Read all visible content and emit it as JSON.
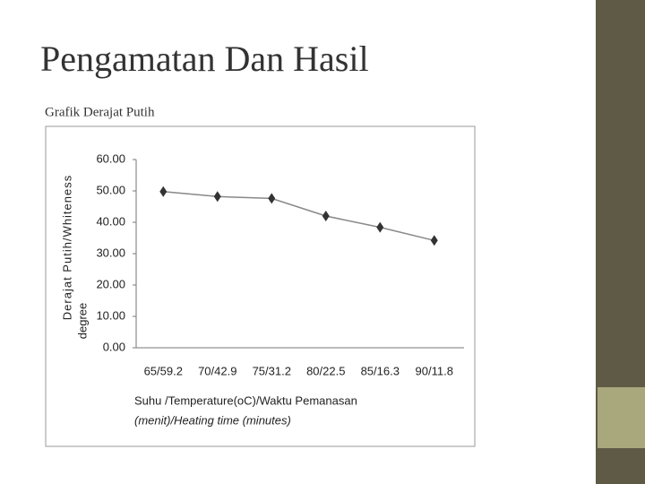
{
  "slide": {
    "title": "Pengamatan Dan Hasil",
    "subtitle": "Grafik Derajat Putih"
  },
  "chart_data": {
    "type": "line",
    "y_label": [
      "Derajat Putih/Whiteness",
      "degree"
    ],
    "x_label": [
      "Suhu /Temperature(oC)/Waktu Pemanasan",
      "(menit)/Heating time (minutes)"
    ],
    "categories": [
      "65/59.2",
      "70/42.9",
      "75/31.2",
      "80/22.5",
      "85/16.3",
      "90/11.8"
    ],
    "values": [
      49.8,
      48.2,
      47.6,
      42.0,
      38.4,
      34.2
    ],
    "color": "#333333",
    "ylim": [
      0,
      60
    ],
    "yticks": [
      {
        "value": 0,
        "label": "0.00"
      },
      {
        "value": 10,
        "label": "10.00"
      },
      {
        "value": 20,
        "label": "20.00"
      },
      {
        "value": 30,
        "label": "30.00"
      },
      {
        "value": 40,
        "label": "40.00"
      },
      {
        "value": 50,
        "label": "50.00"
      },
      {
        "value": 60,
        "label": "60.00"
      }
    ]
  }
}
